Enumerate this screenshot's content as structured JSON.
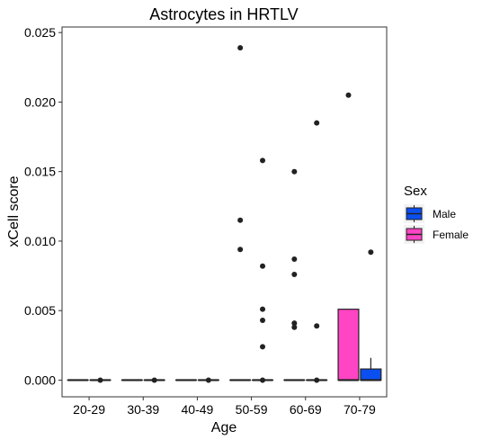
{
  "chart_data": {
    "type": "box",
    "title": "Astrocytes in HRTLV",
    "xlabel": "Age",
    "ylabel": "xCell score",
    "ylim": [
      -0.0012,
      0.0254
    ],
    "yticks": [
      0.0,
      0.005,
      0.01,
      0.015,
      0.02,
      0.025
    ],
    "ytick_labels": [
      "0.000",
      "0.005",
      "0.010",
      "0.015",
      "0.020",
      "0.025"
    ],
    "categories": [
      "20-29",
      "30-39",
      "40-49",
      "50-59",
      "60-69",
      "70-79"
    ],
    "grid": false,
    "legend": {
      "title": "Sex",
      "position": "right",
      "entries": [
        {
          "name": "Male",
          "color": "#0b4ff0"
        },
        {
          "name": "Female",
          "color": "#ff44c4"
        }
      ]
    },
    "series": [
      {
        "name": "Female",
        "color": "#ff44c4",
        "boxes": [
          {
            "category": "20-29",
            "q1": 0,
            "median": 0,
            "q3": 0,
            "whisker_low": 0,
            "whisker_high": 0,
            "outliers": []
          },
          {
            "category": "30-39",
            "q1": 0,
            "median": 0,
            "q3": 0,
            "whisker_low": 0,
            "whisker_high": 0,
            "outliers": []
          },
          {
            "category": "40-49",
            "q1": 0,
            "median": 0,
            "q3": 0,
            "whisker_low": 0,
            "whisker_high": 0,
            "outliers": []
          },
          {
            "category": "50-59",
            "q1": 0,
            "median": 0,
            "q3": 0,
            "whisker_low": 0,
            "whisker_high": 0,
            "outliers": [
              0.0239,
              0.0115,
              0.0094
            ]
          },
          {
            "category": "60-69",
            "q1": 0,
            "median": 0,
            "q3": 0,
            "whisker_low": 0,
            "whisker_high": 0,
            "outliers": [
              0.015,
              0.0087,
              0.0076,
              0.0041,
              0.0038
            ]
          },
          {
            "category": "70-79",
            "q1": 0,
            "median": 0,
            "q3": 0.0051,
            "whisker_low": 0,
            "whisker_high": 0.0051,
            "outliers": [
              0.0205
            ]
          }
        ]
      },
      {
        "name": "Male",
        "color": "#0b4ff0",
        "boxes": [
          {
            "category": "20-29",
            "q1": 0,
            "median": 0,
            "q3": 0,
            "whisker_low": 0,
            "whisker_high": 0,
            "outliers": [
              0
            ]
          },
          {
            "category": "30-39",
            "q1": 0,
            "median": 0,
            "q3": 0,
            "whisker_low": 0,
            "whisker_high": 0,
            "outliers": [
              0
            ]
          },
          {
            "category": "40-49",
            "q1": 0,
            "median": 0,
            "q3": 0,
            "whisker_low": 0,
            "whisker_high": 0,
            "outliers": [
              0
            ]
          },
          {
            "category": "50-59",
            "q1": 0,
            "median": 0,
            "q3": 0,
            "whisker_low": 0,
            "whisker_high": 0,
            "outliers": [
              0.0158,
              0.0082,
              0.0051,
              0.0043,
              0.0024,
              0
            ]
          },
          {
            "category": "60-69",
            "q1": 0,
            "median": 0,
            "q3": 0,
            "whisker_low": 0,
            "whisker_high": 0,
            "outliers": [
              0.0185,
              0.0039,
              0
            ]
          },
          {
            "category": "70-79",
            "q1": 0,
            "median": 0,
            "q3": 0.0008,
            "whisker_low": 0,
            "whisker_high": 0.0016,
            "outliers": [
              0.0092
            ]
          }
        ]
      }
    ]
  }
}
